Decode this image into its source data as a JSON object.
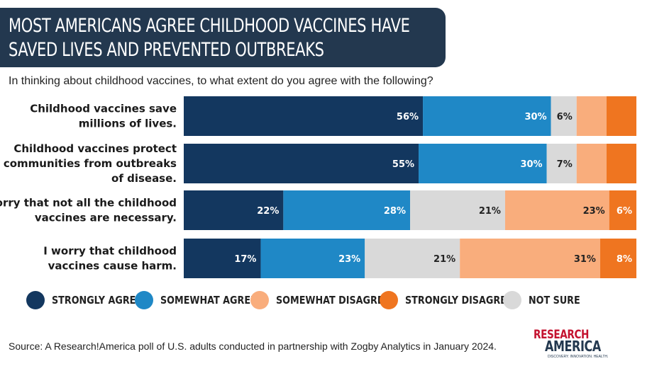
{
  "title": {
    "line1": "MOST AMERICANS AGREE CHILDHOOD VACCINES HAVE",
    "line2": "SAVED LIVES AND PREVENTED OUTBREAKS"
  },
  "subtitle": "In thinking about childhood vaccines, to what extent do you agree with the following?",
  "source": "Source: A Research!America poll of U.S. adults conducted in partnership with Zogby Analytics in January 2024.",
  "logo": {
    "top": "RESEARCH",
    "bottom": "AMERICA",
    "tagline": "DISCOVERY. INNOVATION. HEALTH."
  },
  "colors": {
    "title_bg": "#23384f",
    "strongly_agree": "#13375f",
    "somewhat_agree": "#1f88c6",
    "somewhat_disagree": "#f9ad7c",
    "strongly_disagree": "#ef7520",
    "not_sure": "#d9d9d9"
  },
  "chart_data": {
    "type": "bar",
    "orientation": "horizontal",
    "stacked": true,
    "normalized": true,
    "categories": [
      [
        "Childhood vaccines save",
        "millions of lives."
      ],
      [
        "Childhood vaccines protect",
        "communities from outbreaks",
        "of disease."
      ],
      [
        "I worry that not all the childhood",
        "vaccines are necessary."
      ],
      [
        "I worry that childhood",
        "vaccines cause harm."
      ]
    ],
    "series": [
      {
        "name": "STRONGLY AGREE",
        "color": "#13375f",
        "label_color": "#ffffff",
        "values": [
          56,
          55,
          22,
          17
        ],
        "labels": [
          "56%",
          "55%",
          "22%",
          "17%"
        ]
      },
      {
        "name": "SOMEWHAT AGREE",
        "color": "#1f88c6",
        "label_color": "#ffffff",
        "values": [
          30,
          30,
          28,
          23
        ],
        "labels": [
          "30%",
          "30%",
          "28%",
          "23%"
        ]
      },
      {
        "name": "NOT SURE",
        "color": "#d9d9d9",
        "label_color": "#222222",
        "values": [
          6,
          7,
          21,
          21
        ],
        "labels": [
          "6%",
          "7%",
          "21%",
          "21%"
        ]
      },
      {
        "name": "SOMEWHAT DISAGREE",
        "color": "#f9ad7c",
        "label_color": "#222222",
        "values": [
          7,
          7,
          23,
          31
        ],
        "labels": [
          "",
          "",
          "23%",
          "31%"
        ]
      },
      {
        "name": "STRONGLY DISAGREE",
        "color": "#ef7520",
        "label_color": "#ffffff",
        "values": [
          7,
          7,
          6,
          8
        ],
        "labels": [
          "",
          "",
          "6%",
          "8%"
        ]
      }
    ],
    "legend": {
      "position": "bottom",
      "order": [
        "STRONGLY AGREE",
        "SOMEWHAT AGREE",
        "SOMEWHAT DISAGREE",
        "STRONGLY DISAGREE",
        "NOT SURE"
      ]
    }
  }
}
